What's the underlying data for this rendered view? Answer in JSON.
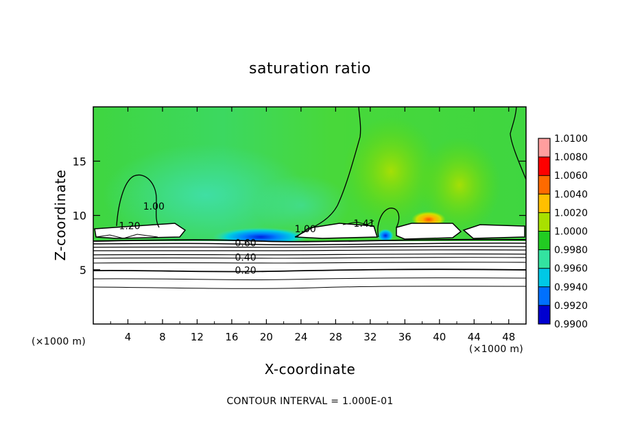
{
  "chart_data": {
    "type": "heatmap",
    "title": "saturation ratio",
    "xlabel": "X-coordinate",
    "ylabel": "Z-coordinate",
    "x_unit_left": "(×1000 m)",
    "x_unit_right": "(×1000 m)",
    "xlim": [
      0,
      50
    ],
    "ylim": [
      0,
      20
    ],
    "x_ticks": [
      4,
      8,
      12,
      16,
      20,
      24,
      28,
      32,
      36,
      40,
      44,
      48
    ],
    "y_ticks": [
      5,
      10,
      15
    ],
    "colorbar": {
      "ticks": [
        "1.0100",
        "1.0080",
        "1.0060",
        "1.0040",
        "1.0020",
        "1.0000",
        "0.9980",
        "0.9960",
        "0.9940",
        "0.9920",
        "0.9900"
      ],
      "colors": [
        "#ff9e9e",
        "#ff0000",
        "#ff6a00",
        "#ffbf00",
        "#a8e000",
        "#22cc22",
        "#33e3a0",
        "#00c8e6",
        "#0070ff",
        "#0000d0",
        "#6a00a0"
      ]
    },
    "contour_labels": [
      {
        "text": "1.00",
        "x": 7.0,
        "y": 10.8
      },
      {
        "text": "1.20",
        "x": 4.2,
        "y": 9.0
      },
      {
        "text": "1.00",
        "x": 24.5,
        "y": 8.7
      },
      {
        "text": "1.41",
        "x": 31.3,
        "y": 9.2
      },
      {
        "text": "0.60",
        "x": 17.6,
        "y": 7.4
      },
      {
        "text": "0.40",
        "x": 17.6,
        "y": 6.1
      },
      {
        "text": "0.20",
        "x": 17.6,
        "y": 4.9
      }
    ],
    "contour_interval_text": "CONTOUR INTERVAL = 1.000E-01",
    "grid": false
  }
}
